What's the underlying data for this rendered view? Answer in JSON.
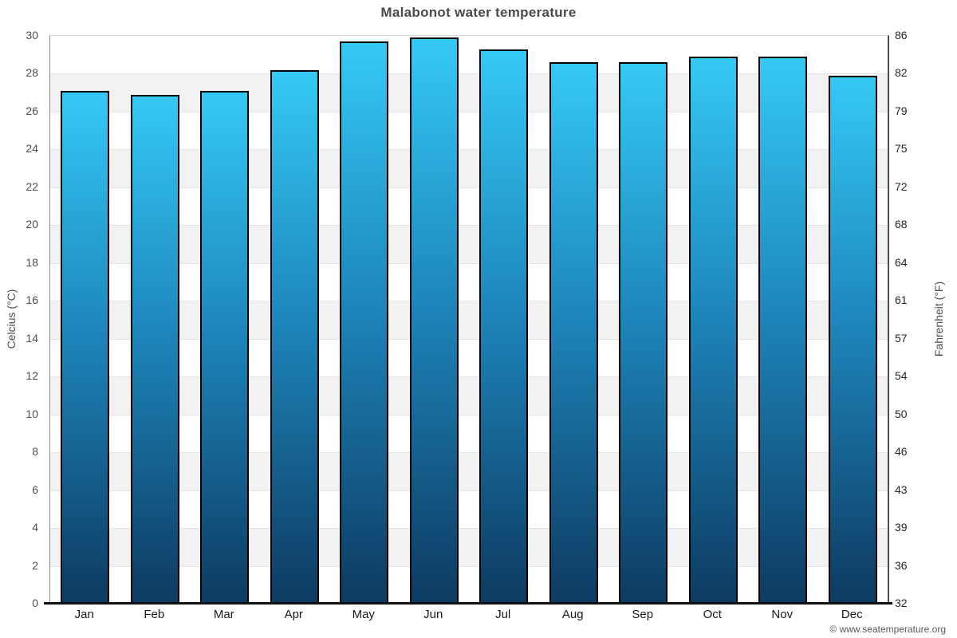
{
  "title": "Malabonot water temperature",
  "credit": "© www.seatemperature.org",
  "chart_data": {
    "type": "bar",
    "title": "Malabonot water temperature",
    "categories": [
      "Jan",
      "Feb",
      "Mar",
      "Apr",
      "May",
      "Jun",
      "Jul",
      "Aug",
      "Sep",
      "Oct",
      "Nov",
      "Dec"
    ],
    "values": [
      27.1,
      26.9,
      27.1,
      28.2,
      29.7,
      29.9,
      29.3,
      28.6,
      28.6,
      28.9,
      28.9,
      27.9
    ],
    "series_name": "Water temperature",
    "unit": "°C",
    "ylabel_left": "Celcius (°C)",
    "ylabel_right": "Fahrenheit (°F)",
    "ylim_left": [
      0,
      30
    ],
    "left_ticks": [
      0,
      2,
      4,
      6,
      8,
      10,
      12,
      14,
      16,
      18,
      20,
      22,
      24,
      26,
      28,
      30
    ],
    "right_ticks": [
      32,
      36,
      39,
      43,
      46,
      50,
      54,
      57,
      61,
      64,
      68,
      72,
      75,
      79,
      82,
      86
    ],
    "legend": "none",
    "grid": "horizontal alternating bands every 2°C",
    "colors": {
      "bar_gradient_top": "#35c9f6",
      "bar_gradient_mid": "#1e88be",
      "bar_gradient_bottom": "#0d3a61",
      "bar_border": "#000000",
      "band_gray": "#f2f2f2",
      "band_white": "#ffffff",
      "gridline": "#e3e3e3",
      "baseline": "#111111",
      "title_text": "#4a4a4a",
      "tick_text_left": "#4d4d4d",
      "tick_text_right": "#262626",
      "month_text": "#1a1a1a",
      "credit_text": "#595959"
    }
  }
}
